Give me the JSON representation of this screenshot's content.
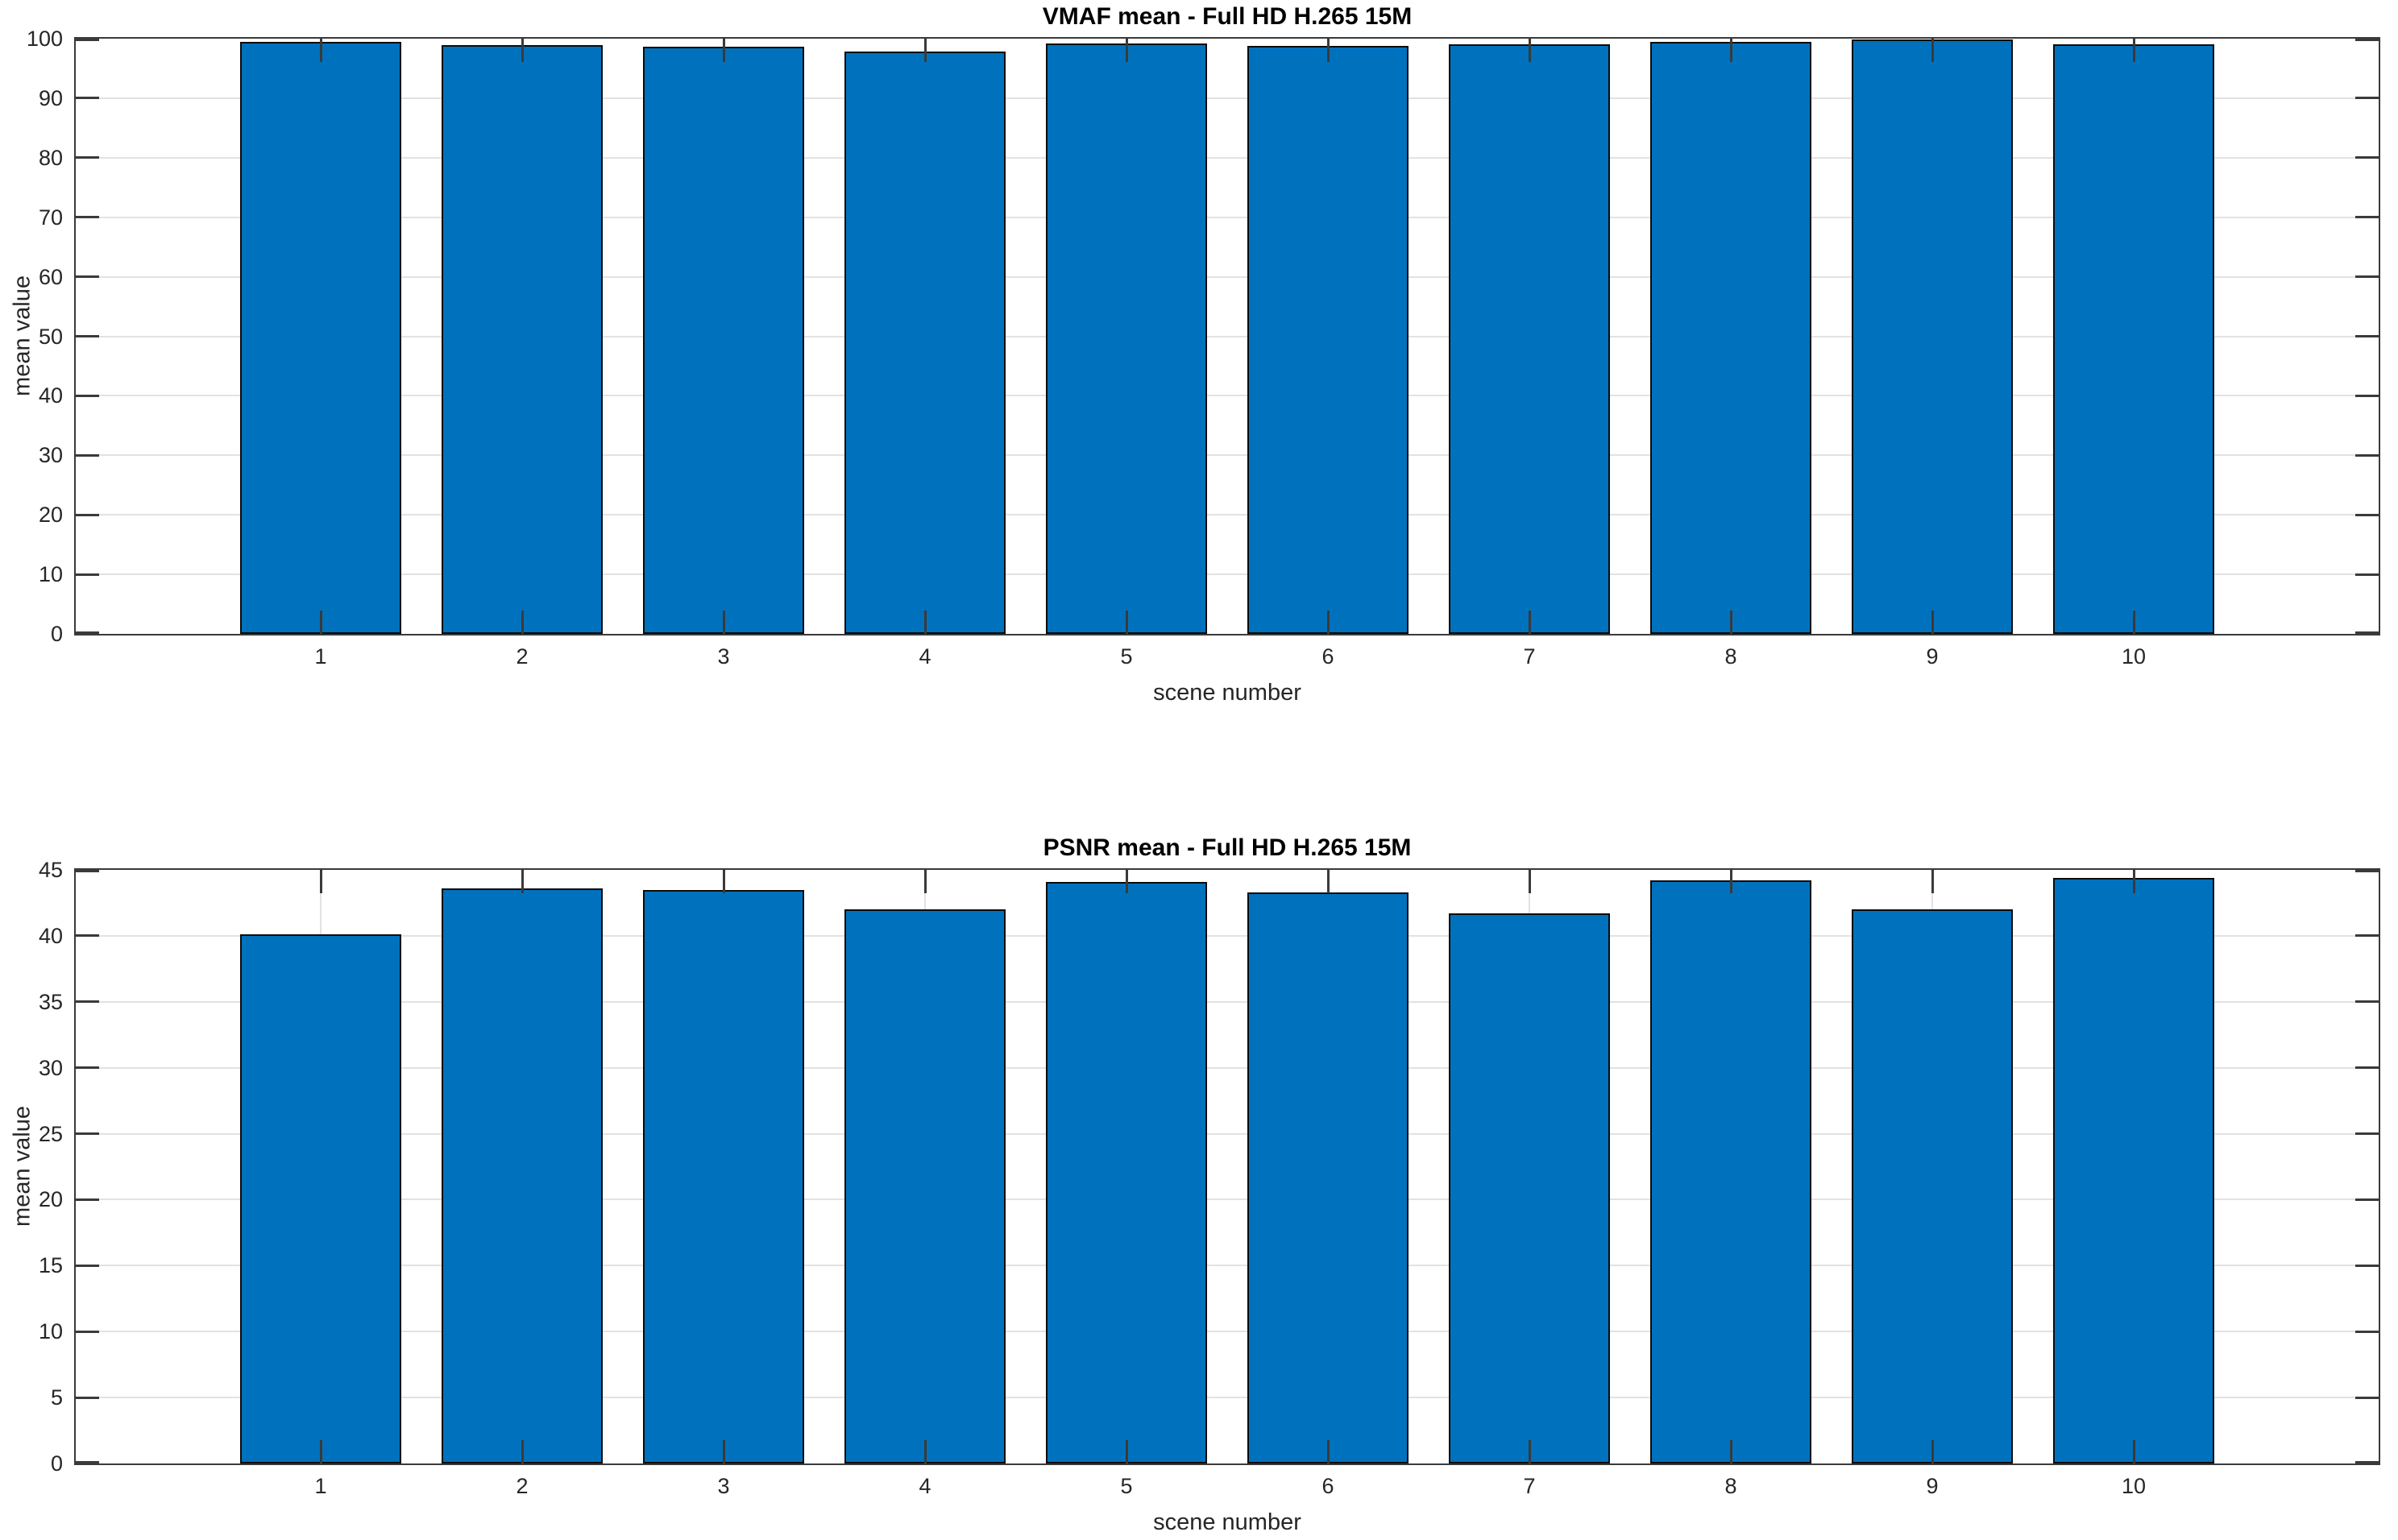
{
  "figure": {
    "background_color": "#ffffff",
    "axis_color": "#3a3a3a",
    "text_color": "#262626",
    "title_color": "#000000",
    "grid_color": "#e2e2e2",
    "bar_fill_color": "#0072BD",
    "bar_edge_color": "#0b0b0b"
  },
  "chart_data": [
    {
      "type": "bar",
      "title": "VMAF mean - Full HD H.265 15M",
      "xlabel": "scene number",
      "ylabel": "mean value",
      "categories": [
        "1",
        "2",
        "3",
        "4",
        "5",
        "6",
        "7",
        "8",
        "9",
        "10"
      ],
      "values": [
        99.4,
        98.9,
        98.6,
        97.9,
        99.2,
        98.8,
        99.1,
        99.4,
        99.9,
        99.0
      ],
      "ylim": [
        0,
        100
      ],
      "yticks": [
        0,
        10,
        20,
        30,
        40,
        50,
        60,
        70,
        80,
        90,
        100
      ],
      "grid": true,
      "legend": null,
      "bar_width_fraction": 0.8
    },
    {
      "type": "bar",
      "title": "PSNR mean - Full HD H.265 15M",
      "xlabel": "scene number",
      "ylabel": "mean value",
      "categories": [
        "1",
        "2",
        "3",
        "4",
        "5",
        "6",
        "7",
        "8",
        "9",
        "10"
      ],
      "values": [
        40.1,
        43.6,
        43.5,
        42.0,
        44.1,
        43.3,
        41.7,
        44.2,
        42.0,
        44.4
      ],
      "ylim": [
        0,
        45
      ],
      "yticks": [
        0,
        5,
        10,
        15,
        20,
        25,
        30,
        35,
        40,
        45
      ],
      "grid": true,
      "legend": null,
      "bar_width_fraction": 0.8
    }
  ]
}
